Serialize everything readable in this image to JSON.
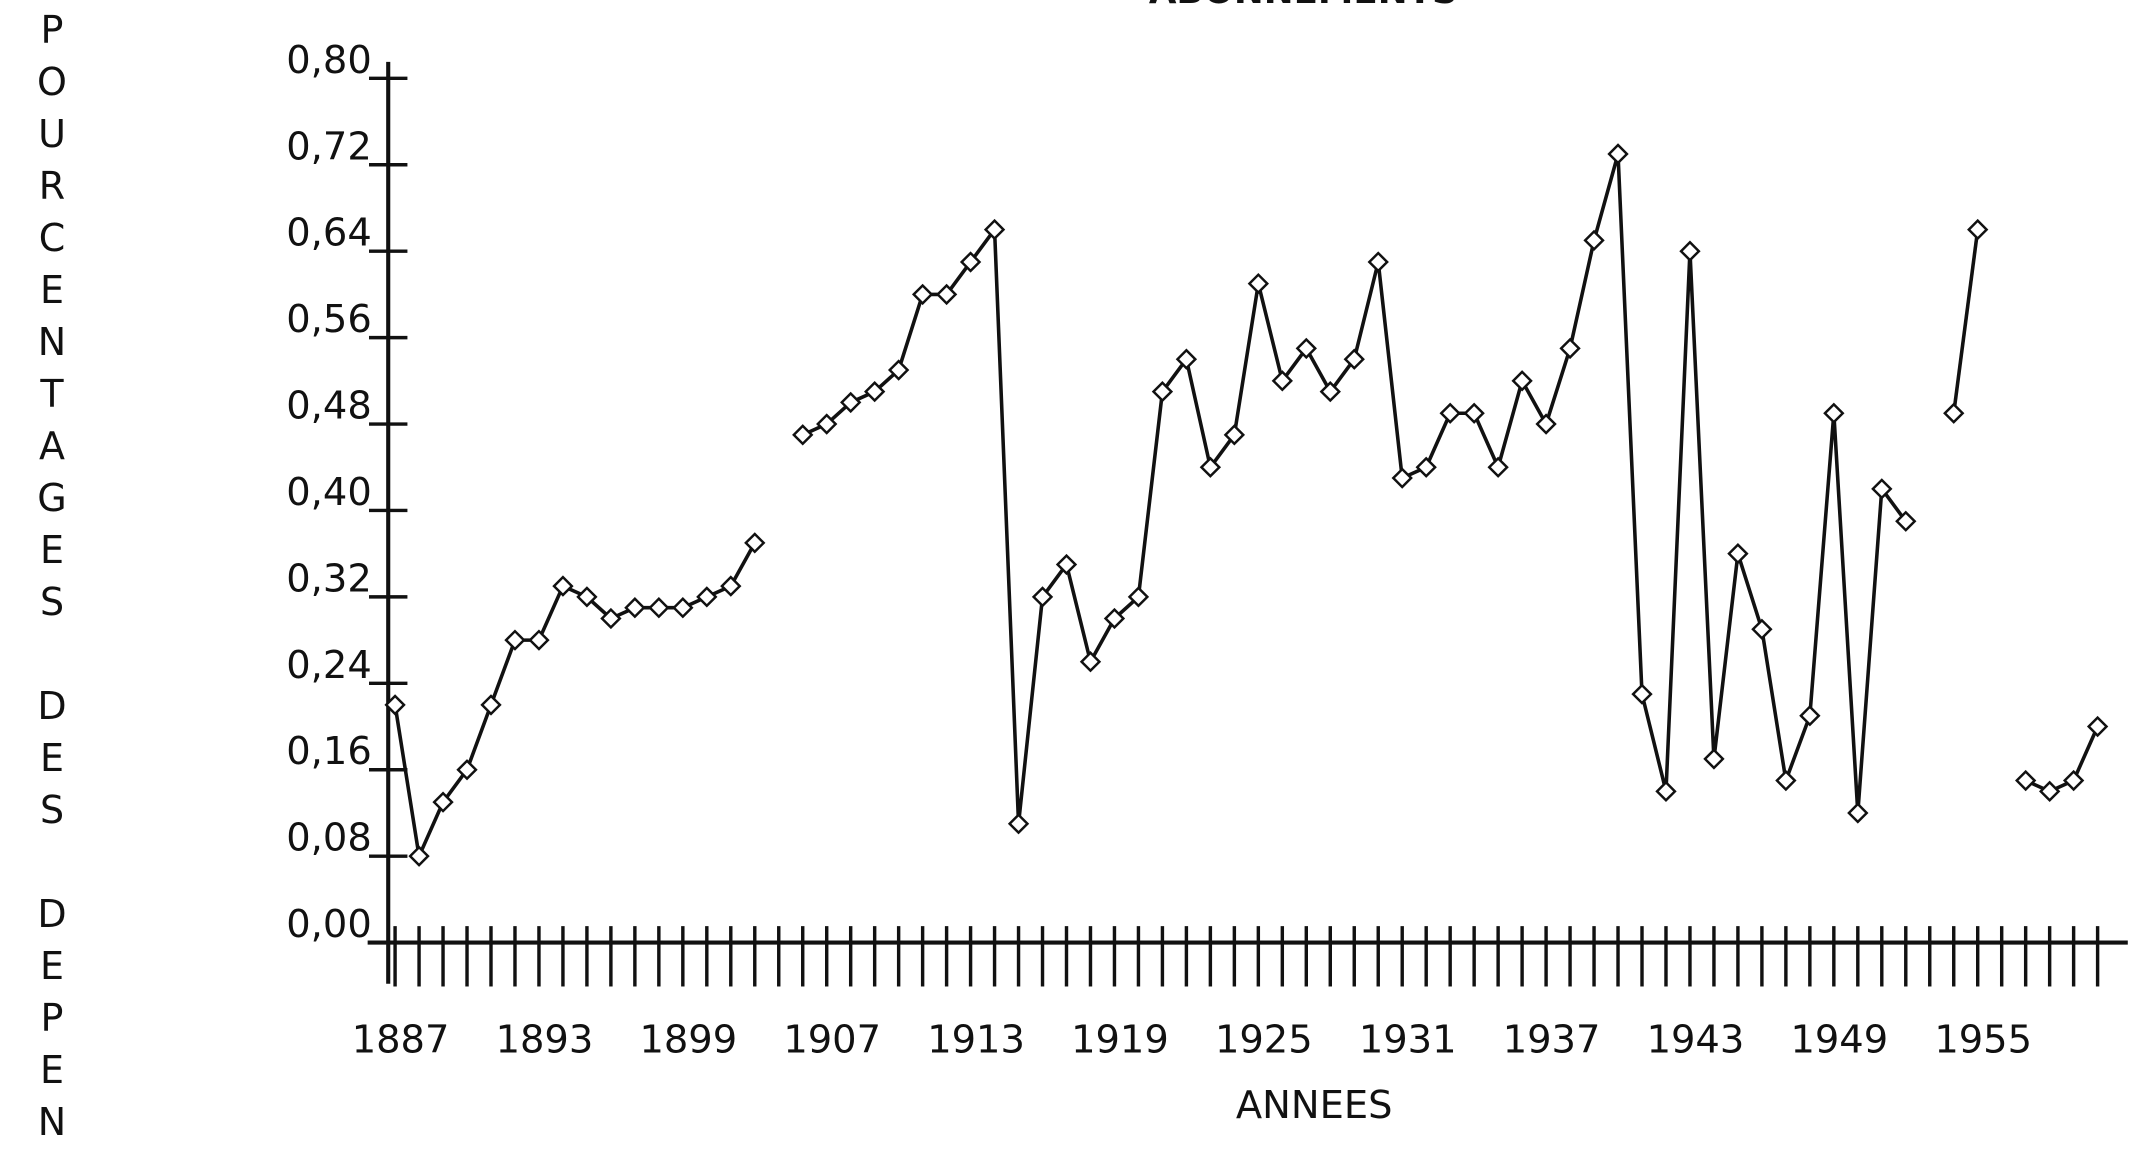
{
  "chart_data": {
    "type": "line",
    "title": "ABONNEMENTS",
    "ylabel": "POURCENTAGES DES DEPEN",
    "xlabel": "ANNEES",
    "categories": [
      "1887",
      null,
      null,
      null,
      null,
      null,
      "1893",
      null,
      null,
      null,
      null,
      null,
      "1899",
      null,
      null,
      null,
      null,
      null,
      "1907",
      null,
      null,
      null,
      null,
      null,
      "1913",
      null,
      null,
      null,
      null,
      null,
      "1919",
      null,
      null,
      null,
      null,
      null,
      "1925",
      null,
      null,
      null,
      null,
      null,
      "1931",
      null,
      null,
      null,
      null,
      null,
      "1937",
      null,
      null,
      null,
      null,
      null,
      "1943",
      null,
      null,
      null,
      null,
      null,
      "1949",
      null,
      null,
      null,
      null,
      null,
      "1955",
      null,
      null,
      null,
      null,
      null
    ],
    "series": [
      {
        "name": null,
        "color": "#111111",
        "values": [
          0.22,
          0.08,
          0.13,
          0.16,
          0.22,
          0.28,
          0.28,
          0.33,
          0.32,
          0.3,
          0.31,
          0.31,
          0.31,
          0.32,
          0.33,
          0.37,
          null,
          0.47,
          0.48,
          0.5,
          0.51,
          0.53,
          0.6,
          0.6,
          0.63,
          0.66,
          0.11,
          0.32,
          0.35,
          0.26,
          0.3,
          0.32,
          0.51,
          0.54,
          0.44,
          0.47,
          0.61,
          0.52,
          0.55,
          0.51,
          0.54,
          0.63,
          0.43,
          0.44,
          0.49,
          0.49,
          0.44,
          0.52,
          0.48,
          0.55,
          0.65,
          0.73,
          0.23,
          0.14,
          0.64,
          0.17,
          0.36,
          0.29,
          0.15,
          0.21,
          0.49,
          0.12,
          0.42,
          0.39,
          null,
          0.49,
          0.66,
          null,
          0.15,
          0.14,
          0.15,
          0.2
        ]
      }
    ],
    "ylim": [
      0,
      0.8
    ],
    "yticks": [
      {
        "value": 0,
        "label": "0,00"
      },
      {
        "value": 0.08,
        "label": "0,08"
      },
      {
        "value": 0.16,
        "label": "0,16"
      },
      {
        "value": 0.24,
        "label": "0,24"
      },
      {
        "value": 0.32,
        "label": "0,32"
      },
      {
        "value": 0.4,
        "label": "0,40"
      },
      {
        "value": 0.48,
        "label": "0,48"
      },
      {
        "value": 0.56,
        "label": "0,56"
      },
      {
        "value": 0.64,
        "label": "0,64"
      },
      {
        "value": 0.72,
        "label": "0,72"
      },
      {
        "value": 0.8,
        "label": "0,80"
      }
    ],
    "grid": false,
    "markers": "diamond"
  }
}
